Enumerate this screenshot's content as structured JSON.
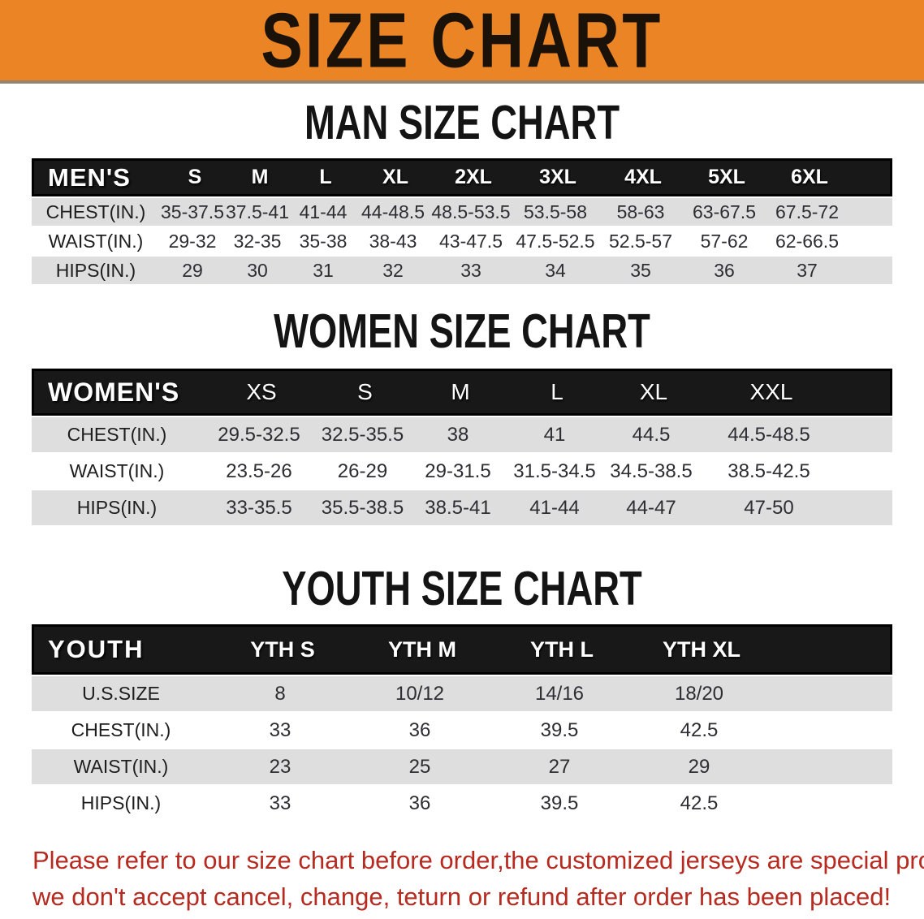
{
  "banner": {
    "title": "SIZE CHART",
    "bg_color": "#EA8424"
  },
  "sections": [
    {
      "heading": "MAN SIZE CHART",
      "group_label": "MEN'S",
      "sizes": [
        "S",
        "M",
        "L",
        "XL",
        "2XL",
        "3XL",
        "4XL",
        "5XL",
        "6XL"
      ],
      "rows": [
        {
          "label": "CHEST(IN.)",
          "values": [
            "35-37.5",
            "37.5-41",
            "41-44",
            "44-48.5",
            "48.5-53.5",
            "53.5-58",
            "58-63",
            "63-67.5",
            "67.5-72"
          ]
        },
        {
          "label": "WAIST(IN.)",
          "values": [
            "29-32",
            "32-35",
            "35-38",
            "38-43",
            "43-47.5",
            "47.5-52.5",
            "52.5-57",
            "57-62",
            "62-66.5"
          ]
        },
        {
          "label": "HIPS(IN.)",
          "values": [
            "29",
            "30",
            "31",
            "32",
            "33",
            "34",
            "35",
            "36",
            "37"
          ]
        }
      ]
    },
    {
      "heading": "WOMEN SIZE CHART",
      "group_label": "WOMEN'S",
      "sizes": [
        "XS",
        "S",
        "M",
        "L",
        "XL",
        "XXL"
      ],
      "rows": [
        {
          "label": "CHEST(IN.)",
          "values": [
            "29.5-32.5",
            "32.5-35.5",
            "38",
            "41",
            "44.5",
            "44.5-48.5"
          ]
        },
        {
          "label": "WAIST(IN.)",
          "values": [
            "23.5-26",
            "26-29",
            "29-31.5",
            "31.5-34.5",
            "34.5-38.5",
            "38.5-42.5"
          ]
        },
        {
          "label": "HIPS(IN.)",
          "values": [
            "33-35.5",
            "35.5-38.5",
            "38.5-41",
            "41-44",
            "44-47",
            "47-50"
          ]
        }
      ]
    },
    {
      "heading": "YOUTH SIZE CHART",
      "group_label": "YOUTH",
      "sizes": [
        "YTH S",
        "YTH M",
        "YTH L",
        "YTH XL"
      ],
      "rows": [
        {
          "label": "U.S.SIZE",
          "values": [
            "8",
            "10/12",
            "14/16",
            "18/20"
          ]
        },
        {
          "label": "CHEST(IN.)",
          "values": [
            "33",
            "36",
            "39.5",
            "42.5"
          ]
        },
        {
          "label": "WAIST(IN.)",
          "values": [
            "23",
            "25",
            "27",
            "29"
          ]
        },
        {
          "label": "HIPS(IN.)",
          "values": [
            "33",
            "36",
            "39.5",
            "42.5"
          ]
        }
      ]
    }
  ],
  "footer": {
    "color": "#B62A20",
    "lines": [
      "Please refer to our size chart before order,the customized jerseys are special products,",
      "we don't accept cancel, change, teturn or refund after order has been placed!"
    ]
  }
}
